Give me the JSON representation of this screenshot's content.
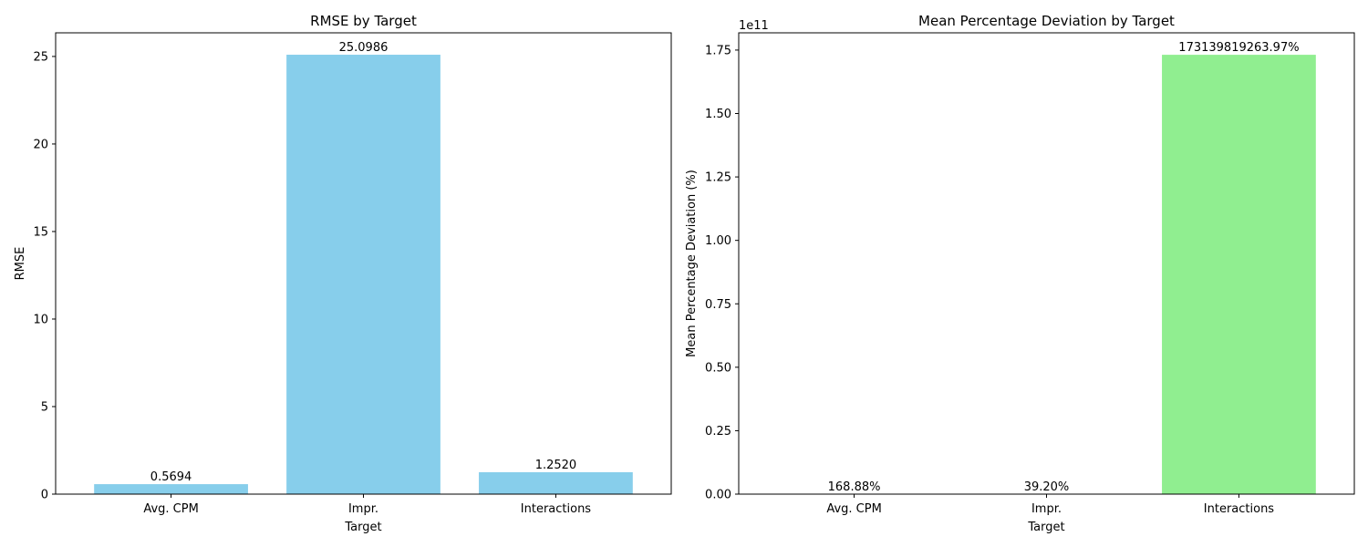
{
  "chart_data": [
    {
      "type": "bar",
      "title": "RMSE by Target",
      "xlabel": "Target",
      "ylabel": "RMSE",
      "categories": [
        "Avg. CPM",
        "Impr.",
        "Interactions"
      ],
      "values": [
        0.5694,
        25.0986,
        1.252
      ],
      "value_labels": [
        "0.5694",
        "25.0986",
        "1.2520"
      ],
      "ylim": [
        0,
        26.35
      ],
      "yticks": [
        0,
        5,
        10,
        15,
        20,
        25
      ],
      "ytick_labels": [
        "0",
        "5",
        "10",
        "15",
        "20",
        "25"
      ],
      "bar_colors": [
        "#87ceeb",
        "#87ceeb",
        "#87ceeb"
      ],
      "grid": false
    },
    {
      "type": "bar",
      "title": "Mean Percentage Deviation by Target",
      "xlabel": "Target",
      "ylabel": "Mean Percentage Deviation (%)",
      "axis_multiplier": "1e11",
      "categories": [
        "Avg. CPM",
        "Impr.",
        "Interactions"
      ],
      "values": [
        168.88,
        39.2,
        173139819263.97
      ],
      "value_labels": [
        "168.88%",
        "39.20%",
        "173139819263.97%"
      ],
      "ylim": [
        0,
        181796810227.17
      ],
      "yticks": [
        0,
        25000000000,
        50000000000,
        75000000000,
        100000000000,
        125000000000,
        150000000000,
        175000000000
      ],
      "ytick_labels": [
        "0.00",
        "0.25",
        "0.50",
        "0.75",
        "1.00",
        "1.25",
        "1.50",
        "1.75"
      ],
      "bar_colors": [
        "#90ee90",
        "#90ee90",
        "#90ee90"
      ],
      "grid": false
    }
  ]
}
